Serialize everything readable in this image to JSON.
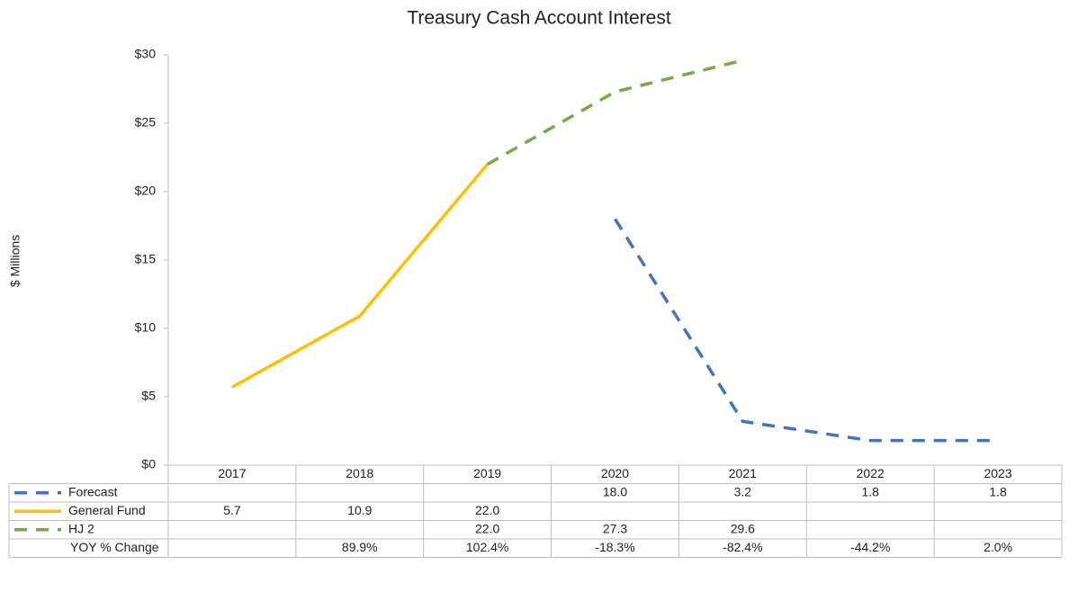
{
  "chart_data": {
    "type": "line",
    "title": "Treasury Cash Account Interest",
    "y_label": "$ Millions",
    "categories": [
      "2017",
      "2018",
      "2019",
      "2020",
      "2021",
      "2022",
      "2023"
    ],
    "series": [
      {
        "name": "Forecast",
        "color": "#4472c4",
        "dashed": true,
        "values": [
          null,
          null,
          null,
          18.0,
          3.2,
          1.8,
          1.8
        ],
        "value_labels": [
          null,
          null,
          null,
          "18.0",
          "3.2",
          "1.8",
          "1.8"
        ]
      },
      {
        "name": "General Fund",
        "color": "#ffc000",
        "dashed": false,
        "values": [
          5.7,
          10.9,
          22.0,
          null,
          null,
          null,
          null
        ],
        "value_labels": [
          "5.7",
          "10.9",
          "22.0",
          null,
          null,
          null,
          null
        ]
      },
      {
        "name": "HJ 2",
        "color": "#70ad47",
        "dashed": true,
        "values": [
          null,
          null,
          22.0,
          27.3,
          29.6,
          null,
          null
        ],
        "value_labels": [
          null,
          null,
          "22.0",
          "27.3",
          "29.6",
          null,
          null
        ]
      }
    ],
    "table_rows": [
      {
        "name": "YOY % Change",
        "values": [
          null,
          89.9,
          102.4,
          -18.3,
          -82.4,
          -44.2,
          2.0
        ],
        "value_labels": [
          null,
          "89.9%",
          "102.4%",
          "-18.3%",
          "-82.4%",
          "-44.2%",
          "2.0%"
        ]
      }
    ],
    "ylim": [
      0,
      30
    ],
    "yticks": [
      {
        "value": 0,
        "label": "$0"
      },
      {
        "value": 5,
        "label": "$5"
      },
      {
        "value": 10,
        "label": "$10"
      },
      {
        "value": 15,
        "label": "$15"
      },
      {
        "value": 20,
        "label": "$20"
      },
      {
        "value": 25,
        "label": "$25"
      },
      {
        "value": 30,
        "label": "$30"
      }
    ],
    "data_table": true
  }
}
